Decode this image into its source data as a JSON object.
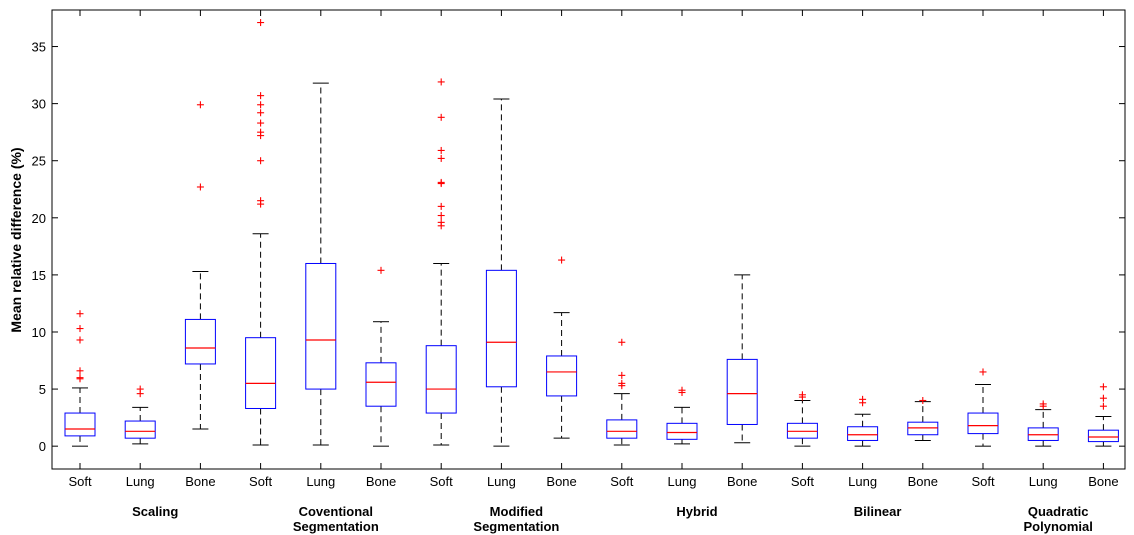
{
  "chart_data": {
    "type": "box",
    "ylabel": "Mean relative difference (%)",
    "xlabel": "",
    "title": "",
    "ylim": [
      -2,
      38.2
    ],
    "yticks": [
      0,
      5,
      10,
      15,
      20,
      25,
      30,
      35
    ],
    "grid": false,
    "groups": [
      {
        "label": "Scaling",
        "categories": [
          "Soft",
          "Lung",
          "Bone"
        ]
      },
      {
        "label": "Coventional Segmentation",
        "categories": [
          "Soft",
          "Lung",
          "Bone"
        ]
      },
      {
        "label": "Modified Segmentation",
        "categories": [
          "Soft",
          "Lung",
          "Bone"
        ]
      },
      {
        "label": "Hybrid",
        "categories": [
          "Soft",
          "Lung",
          "Bone"
        ]
      },
      {
        "label": "Bilinear",
        "categories": [
          "Soft",
          "Lung",
          "Bone"
        ]
      },
      {
        "label": "Quadratic Polynomial",
        "categories": [
          "Soft",
          "Lung",
          "Bone"
        ]
      }
    ],
    "boxes": [
      {
        "group": "Scaling",
        "category": "Soft",
        "min": 0.0,
        "q1": 0.9,
        "median": 1.5,
        "q3": 2.9,
        "max": 5.1,
        "outliers": [
          5.9,
          6.0,
          6.6,
          9.3,
          10.3,
          11.6
        ]
      },
      {
        "group": "Scaling",
        "category": "Lung",
        "min": 0.2,
        "q1": 0.7,
        "median": 1.3,
        "q3": 2.2,
        "max": 3.4,
        "outliers": [
          4.6,
          5.0
        ]
      },
      {
        "group": "Scaling",
        "category": "Bone",
        "min": 1.5,
        "q1": 7.2,
        "median": 8.6,
        "q3": 11.1,
        "max": 15.3,
        "outliers": [
          22.7,
          29.9
        ]
      },
      {
        "group": "Coventional Segmentation",
        "category": "Soft",
        "min": 0.1,
        "q1": 3.3,
        "median": 5.5,
        "q3": 9.5,
        "max": 18.6,
        "outliers": [
          21.2,
          21.5,
          25.0,
          27.2,
          27.5,
          28.3,
          29.2,
          29.9,
          30.7,
          37.1
        ]
      },
      {
        "group": "Coventional Segmentation",
        "category": "Lung",
        "min": 0.1,
        "q1": 5.0,
        "median": 9.3,
        "q3": 16.0,
        "max": 31.8,
        "outliers": []
      },
      {
        "group": "Coventional Segmentation",
        "category": "Bone",
        "min": 0.0,
        "q1": 3.5,
        "median": 5.6,
        "q3": 7.3,
        "max": 10.9,
        "outliers": [
          15.4
        ]
      },
      {
        "group": "Modified Segmentation",
        "category": "Soft",
        "min": 0.1,
        "q1": 2.9,
        "median": 5.0,
        "q3": 8.8,
        "max": 16.0,
        "outliers": [
          19.3,
          19.6,
          20.2,
          21.0,
          23.0,
          23.1,
          25.2,
          25.9,
          28.8,
          31.9
        ]
      },
      {
        "group": "Modified Segmentation",
        "category": "Lung",
        "min": 0.0,
        "q1": 5.2,
        "median": 9.1,
        "q3": 15.4,
        "max": 30.4,
        "outliers": []
      },
      {
        "group": "Modified Segmentation",
        "category": "Bone",
        "min": 0.7,
        "q1": 4.4,
        "median": 6.5,
        "q3": 7.9,
        "max": 11.7,
        "outliers": [
          16.3
        ]
      },
      {
        "group": "Hybrid",
        "category": "Soft",
        "min": 0.1,
        "q1": 0.7,
        "median": 1.3,
        "q3": 2.3,
        "max": 4.6,
        "outliers": [
          5.3,
          5.5,
          6.2,
          9.1
        ]
      },
      {
        "group": "Hybrid",
        "category": "Lung",
        "min": 0.2,
        "q1": 0.6,
        "median": 1.2,
        "q3": 2.0,
        "max": 3.4,
        "outliers": [
          4.7,
          4.9
        ]
      },
      {
        "group": "Hybrid",
        "category": "Bone",
        "min": 0.3,
        "q1": 1.9,
        "median": 4.6,
        "q3": 7.6,
        "max": 15.0,
        "outliers": []
      },
      {
        "group": "Bilinear",
        "category": "Soft",
        "min": 0.0,
        "q1": 0.7,
        "median": 1.3,
        "q3": 2.0,
        "max": 4.0,
        "outliers": [
          4.3,
          4.5
        ]
      },
      {
        "group": "Bilinear",
        "category": "Lung",
        "min": 0.0,
        "q1": 0.5,
        "median": 1.0,
        "q3": 1.7,
        "max": 2.8,
        "outliers": [
          3.8,
          4.1
        ]
      },
      {
        "group": "Bilinear",
        "category": "Bone",
        "min": 0.5,
        "q1": 1.0,
        "median": 1.6,
        "q3": 2.1,
        "max": 3.9,
        "outliers": [
          4.0
        ]
      },
      {
        "group": "Quadratic Polynomial",
        "category": "Soft",
        "min": 0.0,
        "q1": 1.1,
        "median": 1.8,
        "q3": 2.9,
        "max": 5.4,
        "outliers": [
          6.5
        ]
      },
      {
        "group": "Quadratic Polynomial",
        "category": "Lung",
        "min": 0.0,
        "q1": 0.5,
        "median": 1.0,
        "q3": 1.6,
        "max": 3.2,
        "outliers": [
          3.5,
          3.7
        ]
      },
      {
        "group": "Quadratic Polynomial",
        "category": "Bone",
        "min": 0.0,
        "q1": 0.4,
        "median": 0.8,
        "q3": 1.4,
        "max": 2.6,
        "outliers": [
          3.5,
          4.2,
          5.2
        ]
      }
    ]
  },
  "colors": {
    "box": "#0000ff",
    "median": "#ff0000",
    "whisker": "#000000",
    "outlier": "#ff0000",
    "axis": "#000000"
  }
}
